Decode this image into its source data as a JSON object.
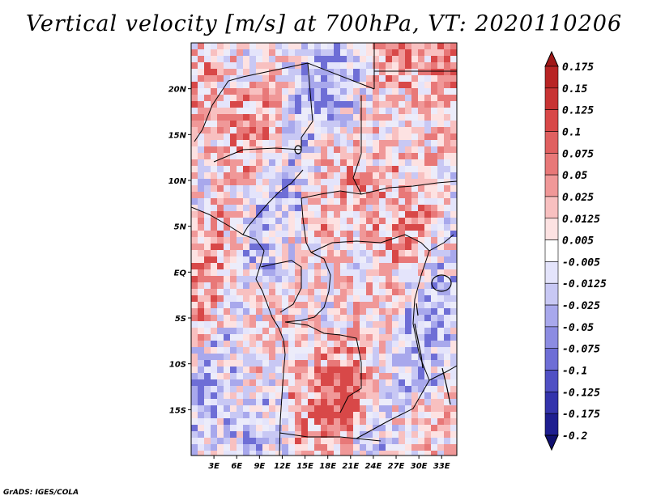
{
  "title": "Vertical velocity [m/s] at 700hPa, VT: 2020110206",
  "credit": "GrADS: IGES/COLA",
  "map": {
    "lat_labels": [
      "20N",
      "15N",
      "10N",
      "5N",
      "EQ",
      "5S",
      "10S",
      "15S"
    ],
    "lat_values": [
      20,
      15,
      10,
      5,
      0,
      -5,
      -10,
      -15
    ],
    "lon_labels": [
      "3E",
      "6E",
      "9E",
      "12E",
      "15E",
      "18E",
      "21E",
      "24E",
      "27E",
      "30E",
      "33E"
    ],
    "lon_values": [
      3,
      6,
      9,
      12,
      15,
      18,
      21,
      24,
      27,
      30,
      33
    ],
    "lon_range": [
      0,
      35
    ],
    "lat_range": [
      -20,
      25
    ]
  },
  "colorbar": {
    "labels": [
      "0.175",
      "0.15",
      "0.125",
      "0.1",
      "0.075",
      "0.05",
      "0.025",
      "0.0125",
      "0.005",
      "-0.005",
      "-0.0125",
      "-0.025",
      "-0.05",
      "-0.075",
      "-0.1",
      "-0.125",
      "-0.175",
      "-0.2"
    ],
    "colors": [
      "#a01818",
      "#b82424",
      "#c83434",
      "#d84848",
      "#e06060",
      "#e87878",
      "#f09898",
      "#f8c0c0",
      "#fde2e2",
      "#ffffff",
      "#e4e4fb",
      "#c8c8f4",
      "#a8a8ec",
      "#8c8ce2",
      "#6e6ed6",
      "#5050c4",
      "#3434ac",
      "#1e1e90",
      "#101070"
    ]
  }
}
